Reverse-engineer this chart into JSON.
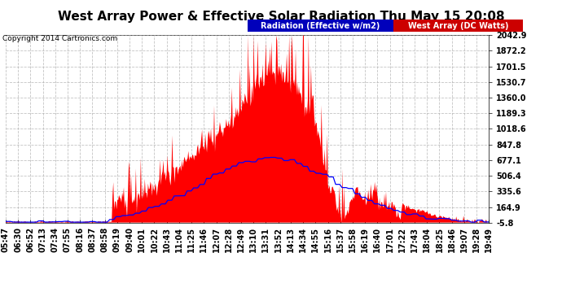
{
  "title": "West Array Power & Effective Solar Radiation Thu May 15 20:08",
  "copyright": "Copyright 2014 Cartronics.com",
  "legend": {
    "radiation_label": "Radiation (Effective w/m2)",
    "west_array_label": "West Array (DC Watts)",
    "radiation_color": "#0000ff",
    "radiation_bg": "#0000bb",
    "west_array_color": "#ff0000",
    "west_array_bg": "#cc0000"
  },
  "yticks": [
    -5.8,
    164.9,
    335.6,
    506.4,
    677.1,
    847.8,
    1018.6,
    1189.3,
    1360.0,
    1530.7,
    1701.5,
    1872.2,
    2042.9
  ],
  "ylim": [
    -5.8,
    2042.9
  ],
  "background_color": "#ffffff",
  "plot_bg_color": "#ffffff",
  "grid_color": "#aaaaaa",
  "red_fill_color": "#ff0000",
  "blue_line_color": "#0000ff",
  "xtick_labels": [
    "05:47",
    "06:30",
    "06:52",
    "07:13",
    "07:34",
    "07:55",
    "08:16",
    "08:37",
    "08:58",
    "09:19",
    "09:40",
    "10:01",
    "10:22",
    "10:43",
    "11:04",
    "11:25",
    "11:46",
    "12:07",
    "12:28",
    "12:49",
    "13:10",
    "13:31",
    "13:52",
    "14:13",
    "14:34",
    "14:55",
    "15:16",
    "15:37",
    "15:58",
    "16:19",
    "16:40",
    "17:01",
    "17:22",
    "17:43",
    "18:04",
    "18:25",
    "18:46",
    "19:07",
    "19:28",
    "19:49"
  ],
  "title_fontsize": 11,
  "axis_fontsize": 7,
  "copyright_fontsize": 6.5
}
